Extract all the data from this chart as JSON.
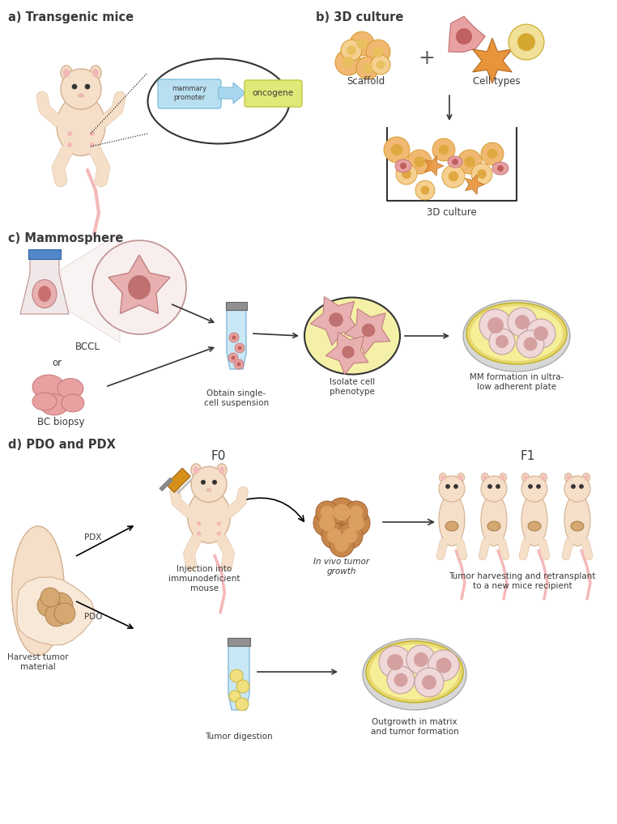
{
  "panel_a_label": "a) Transgenic mice",
  "panel_b_label": "b) 3D culture",
  "panel_c_label": "c) Mammosphere",
  "panel_d_label": "d) PDO and PDX",
  "mammary_promoter_text": "mammary\npromoter",
  "oncogene_text": "oncogene",
  "scaffold_text": "Scaffold",
  "cell_types_text": "Cell types",
  "culture_3d_text": "3D culture",
  "bccl_text": "BCCL",
  "or_text": "or",
  "bc_biopsy_text": "BC biopsy",
  "obtain_text": "Obtain single-\ncell suspension",
  "isolate_text": "Isolate cell\nphenotype",
  "mm_formation_text": "MM formation in ultra-\nlow adherent plate",
  "f0_text": "F0",
  "f1_text": "F1",
  "injection_text": "Injection into\nimmunodeficient\nmouse",
  "in_vivo_text": "In vivo tumor\ngrowth",
  "tumor_harvest_text": "Tumor harvesting and retransplant\nto a new mice recipient",
  "harvest_material_text": "Harvest tumor\nmaterial",
  "pdx_text": "PDX",
  "pdo_text": "PDO",
  "tumor_digestion_text": "Tumor digestion",
  "outgrowth_text": "Outgrowth in matrix\nand tumor formation",
  "bg_color": "#ffffff",
  "text_color": "#3a3a3a",
  "label_fontsize": 10.5,
  "body_fontsize": 8.5,
  "small_fontsize": 7.5,
  "mouse_body_color": "#f5dfc8",
  "mouse_outline_color": "#d4b090",
  "mouse_pink_color": "#f4b8b8",
  "mouse_pink_dark": "#e890a0",
  "cell_orange_color": "#e8943a",
  "cell_orange_light": "#f0b870",
  "cell_orange_pale": "#f5d090",
  "cell_pink_color": "#e8a0a0",
  "cell_pink_dark": "#c87878",
  "cell_red_dark": "#c06060",
  "tube_blue_color": "#c8e8f5",
  "tube_blue_dark": "#88b8d8",
  "yellow_bg_color": "#f5f0a0",
  "plate_yellow_outer": "#e8d870",
  "plate_yellow_inner": "#f5ef98",
  "plate_gray_outer": "#d8d8d8",
  "plate_gray_inner": "#f0f0f0",
  "arrow_color": "#333333",
  "box_blue": "#b8dff0",
  "box_yellow_green": "#e0e878",
  "tumor_brown": "#c8874a",
  "tumor_brown_light": "#dba868",
  "tumor_tan": "#d4a870",
  "breast_skin": "#f5dfc8",
  "breast_outline": "#d4b090"
}
